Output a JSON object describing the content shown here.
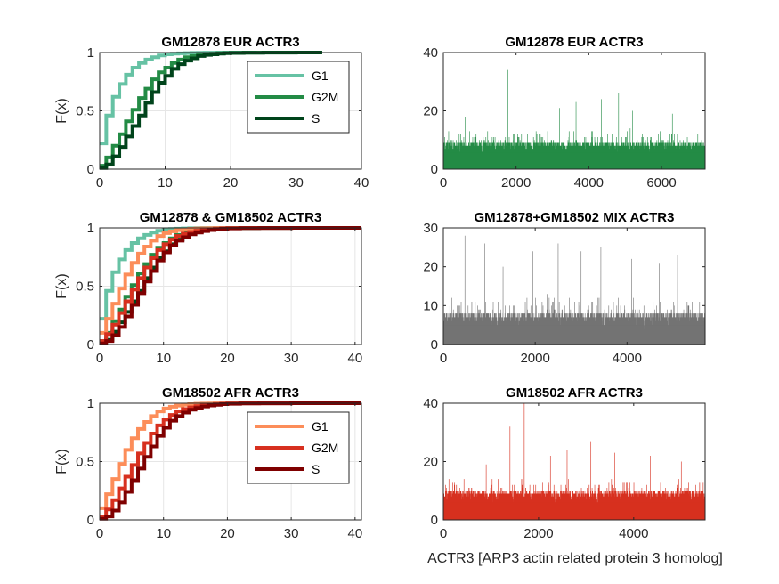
{
  "figure": {
    "xlabel": "ACTR3 [ARP3 actin related protein 3 homolog]"
  },
  "chart_data": [
    {
      "id": "cdf-eur",
      "type": "line",
      "title": "GM12878 EUR ACTR3",
      "ylabel": "F(x)",
      "xlim": [
        0,
        40
      ],
      "ylim": [
        0,
        1
      ],
      "xticks": [
        "0",
        "10",
        "20",
        "30",
        "40"
      ],
      "yticks": [
        "0",
        "0.5",
        "1"
      ],
      "grid": true,
      "legend": "top-right",
      "series": [
        {
          "name": "G1",
          "color": "#66c2a4",
          "x": [
            0,
            1,
            2,
            3,
            4,
            5,
            6,
            7,
            8,
            9,
            10,
            11,
            12,
            13,
            14,
            15,
            16,
            17,
            18,
            20,
            24
          ],
          "y": [
            0.22,
            0.46,
            0.62,
            0.73,
            0.81,
            0.87,
            0.91,
            0.94,
            0.96,
            0.975,
            0.985,
            0.99,
            0.993,
            0.995,
            0.997,
            0.998,
            0.999,
            0.9995,
            0.9998,
            1.0,
            1.0
          ]
        },
        {
          "name": "G2M",
          "color": "#238b45",
          "x": [
            0,
            1,
            2,
            3,
            4,
            5,
            6,
            7,
            8,
            9,
            10,
            11,
            12,
            13,
            14,
            15,
            16,
            17,
            18,
            19,
            20,
            22,
            25,
            34
          ],
          "y": [
            0.03,
            0.1,
            0.2,
            0.3,
            0.41,
            0.51,
            0.61,
            0.69,
            0.77,
            0.83,
            0.87,
            0.91,
            0.94,
            0.96,
            0.97,
            0.98,
            0.985,
            0.99,
            0.994,
            0.996,
            0.998,
            0.999,
            1.0,
            1.0
          ]
        },
        {
          "name": "S",
          "color": "#00441b",
          "x": [
            0,
            1,
            2,
            3,
            4,
            5,
            6,
            7,
            8,
            9,
            10,
            11,
            12,
            13,
            14,
            15,
            16,
            17,
            18,
            19,
            20,
            22,
            25,
            30,
            34
          ],
          "y": [
            0.01,
            0.04,
            0.11,
            0.19,
            0.28,
            0.37,
            0.46,
            0.57,
            0.66,
            0.74,
            0.8,
            0.86,
            0.9,
            0.93,
            0.95,
            0.97,
            0.98,
            0.985,
            0.99,
            0.994,
            0.996,
            0.998,
            0.999,
            1.0,
            1.0
          ]
        }
      ]
    },
    {
      "id": "hist-eur",
      "type": "bar",
      "title": "GM12878 EUR ACTR3",
      "xlim": [
        0,
        7200
      ],
      "ylim": [
        0,
        40
      ],
      "xticks": [
        "0",
        "2000",
        "4000",
        "6000"
      ],
      "yticks": [
        "0",
        "20",
        "40"
      ],
      "grid": false,
      "color": "#238b45",
      "n": 7200,
      "typical_max": 10,
      "peaks": [
        [
          1780,
          34
        ],
        [
          3650,
          23
        ],
        [
          4350,
          24
        ],
        [
          4820,
          26
        ],
        [
          3200,
          21
        ],
        [
          5200,
          20
        ],
        [
          600,
          18
        ],
        [
          6300,
          19
        ]
      ]
    },
    {
      "id": "cdf-mix",
      "type": "line",
      "title": "GM12878 & GM18502 ACTR3",
      "ylabel": "F(x)",
      "xlim": [
        0,
        41
      ],
      "ylim": [
        0,
        1
      ],
      "xticks": [
        "0",
        "10",
        "20",
        "30",
        "40"
      ],
      "yticks": [
        "0",
        "0.5",
        "1"
      ],
      "grid": true,
      "legend": "",
      "series": [
        {
          "name": "",
          "color": "#66c2a4",
          "x": [
            0,
            1,
            2,
            3,
            4,
            5,
            6,
            7,
            8,
            9,
            10,
            11,
            12,
            13,
            14,
            15,
            16,
            17,
            18,
            20,
            24
          ],
          "y": [
            0.22,
            0.46,
            0.62,
            0.73,
            0.81,
            0.87,
            0.91,
            0.94,
            0.96,
            0.975,
            0.985,
            0.99,
            0.993,
            0.995,
            0.997,
            0.998,
            0.999,
            0.9995,
            0.9998,
            1.0,
            1.0
          ]
        },
        {
          "name": "",
          "color": "#238b45",
          "x": [
            0,
            1,
            2,
            3,
            4,
            5,
            6,
            7,
            8,
            9,
            10,
            11,
            12,
            13,
            14,
            15,
            16,
            17,
            18,
            19,
            20,
            22,
            25,
            34
          ],
          "y": [
            0.03,
            0.1,
            0.2,
            0.3,
            0.41,
            0.51,
            0.61,
            0.69,
            0.77,
            0.83,
            0.87,
            0.91,
            0.94,
            0.96,
            0.97,
            0.98,
            0.985,
            0.99,
            0.994,
            0.996,
            0.998,
            0.999,
            1.0,
            1.0
          ]
        },
        {
          "name": "",
          "color": "#00441b",
          "x": [
            0,
            1,
            2,
            3,
            4,
            5,
            6,
            7,
            8,
            9,
            10,
            11,
            12,
            13,
            14,
            15,
            16,
            17,
            18,
            19,
            20,
            22,
            25,
            30,
            34
          ],
          "y": [
            0.01,
            0.04,
            0.11,
            0.19,
            0.28,
            0.37,
            0.46,
            0.57,
            0.66,
            0.74,
            0.8,
            0.86,
            0.9,
            0.93,
            0.95,
            0.97,
            0.98,
            0.985,
            0.99,
            0.994,
            0.996,
            0.998,
            0.999,
            1.0,
            1.0
          ]
        },
        {
          "name": "",
          "color": "#fc8d59",
          "x": [
            0,
            1,
            2,
            3,
            4,
            5,
            6,
            7,
            8,
            9,
            10,
            11,
            12,
            13,
            14,
            15,
            16,
            17,
            18,
            20,
            22,
            25
          ],
          "y": [
            0.1,
            0.22,
            0.35,
            0.48,
            0.6,
            0.7,
            0.78,
            0.84,
            0.89,
            0.93,
            0.955,
            0.97,
            0.98,
            0.987,
            0.992,
            0.995,
            0.997,
            0.998,
            0.999,
            0.9995,
            1.0,
            1.0
          ]
        },
        {
          "name": "",
          "color": "#d7301f",
          "x": [
            0,
            1,
            2,
            3,
            4,
            5,
            6,
            7,
            8,
            9,
            10,
            11,
            12,
            13,
            14,
            15,
            16,
            17,
            18,
            19,
            20,
            22,
            25,
            30,
            41
          ],
          "y": [
            0.03,
            0.09,
            0.17,
            0.27,
            0.37,
            0.47,
            0.57,
            0.66,
            0.74,
            0.81,
            0.86,
            0.9,
            0.93,
            0.95,
            0.965,
            0.975,
            0.983,
            0.989,
            0.993,
            0.996,
            0.998,
            0.999,
            0.9995,
            1.0,
            1.0
          ]
        },
        {
          "name": "",
          "color": "#7f0000",
          "x": [
            0,
            1,
            2,
            3,
            4,
            5,
            6,
            7,
            8,
            9,
            10,
            11,
            12,
            13,
            14,
            15,
            16,
            17,
            18,
            19,
            20,
            22,
            25,
            30,
            41
          ],
          "y": [
            0.01,
            0.03,
            0.08,
            0.15,
            0.24,
            0.34,
            0.44,
            0.54,
            0.63,
            0.72,
            0.79,
            0.85,
            0.89,
            0.92,
            0.945,
            0.96,
            0.972,
            0.981,
            0.987,
            0.992,
            0.995,
            0.998,
            0.999,
            1.0,
            1.0
          ]
        }
      ]
    },
    {
      "id": "hist-mix",
      "type": "bar",
      "title": "GM12878+GM18502 MIX ACTR3",
      "xlim": [
        0,
        5700
      ],
      "ylim": [
        0,
        30
      ],
      "xticks": [
        "0",
        "2000",
        "4000"
      ],
      "yticks": [
        "0",
        "10",
        "20",
        "30"
      ],
      "grid": false,
      "color": "#737373",
      "n": 5700,
      "typical_max": 9,
      "peaks": [
        [
          470,
          28
        ],
        [
          900,
          26
        ],
        [
          1950,
          24
        ],
        [
          2500,
          26
        ],
        [
          3000,
          24
        ],
        [
          3430,
          25
        ],
        [
          4100,
          22
        ],
        [
          5100,
          23
        ],
        [
          1300,
          20
        ],
        [
          4700,
          21
        ]
      ]
    },
    {
      "id": "cdf-afr",
      "type": "line",
      "title": "GM18502 AFR ACTR3",
      "ylabel": "F(x)",
      "xlim": [
        0,
        41
      ],
      "ylim": [
        0,
        1
      ],
      "xticks": [
        "0",
        "10",
        "20",
        "30",
        "40"
      ],
      "yticks": [
        "0",
        "0.5",
        "1"
      ],
      "grid": true,
      "legend": "top-right",
      "series": [
        {
          "name": "G1",
          "color": "#fc8d59",
          "x": [
            0,
            1,
            2,
            3,
            4,
            5,
            6,
            7,
            8,
            9,
            10,
            11,
            12,
            13,
            14,
            15,
            16,
            17,
            18,
            20,
            22,
            25
          ],
          "y": [
            0.1,
            0.22,
            0.35,
            0.48,
            0.6,
            0.7,
            0.78,
            0.84,
            0.89,
            0.93,
            0.955,
            0.97,
            0.98,
            0.987,
            0.992,
            0.995,
            0.997,
            0.998,
            0.999,
            0.9995,
            1.0,
            1.0
          ]
        },
        {
          "name": "G2M",
          "color": "#d7301f",
          "x": [
            0,
            1,
            2,
            3,
            4,
            5,
            6,
            7,
            8,
            9,
            10,
            11,
            12,
            13,
            14,
            15,
            16,
            17,
            18,
            19,
            20,
            22,
            25,
            30,
            41
          ],
          "y": [
            0.03,
            0.09,
            0.17,
            0.27,
            0.37,
            0.47,
            0.57,
            0.66,
            0.74,
            0.81,
            0.86,
            0.9,
            0.93,
            0.95,
            0.965,
            0.975,
            0.983,
            0.989,
            0.993,
            0.996,
            0.998,
            0.999,
            0.9995,
            1.0,
            1.0
          ]
        },
        {
          "name": "S",
          "color": "#7f0000",
          "x": [
            0,
            1,
            2,
            3,
            4,
            5,
            6,
            7,
            8,
            9,
            10,
            11,
            12,
            13,
            14,
            15,
            16,
            17,
            18,
            19,
            20,
            22,
            25,
            30,
            41
          ],
          "y": [
            0.01,
            0.03,
            0.08,
            0.15,
            0.24,
            0.34,
            0.44,
            0.54,
            0.63,
            0.72,
            0.79,
            0.85,
            0.89,
            0.92,
            0.945,
            0.96,
            0.972,
            0.981,
            0.987,
            0.992,
            0.995,
            0.998,
            0.999,
            1.0,
            1.0
          ]
        }
      ]
    },
    {
      "id": "hist-afr",
      "type": "bar",
      "title": "GM18502 AFR ACTR3",
      "xlim": [
        0,
        5500
      ],
      "ylim": [
        0,
        40
      ],
      "xticks": [
        "0",
        "2000",
        "4000"
      ],
      "yticks": [
        "0",
        "20",
        "40"
      ],
      "grid": false,
      "color": "#d7301f",
      "n": 5500,
      "typical_max": 11,
      "peaks": [
        [
          1700,
          40
        ],
        [
          1400,
          32
        ],
        [
          3100,
          27
        ],
        [
          2600,
          24
        ],
        [
          3600,
          23
        ],
        [
          4350,
          22
        ],
        [
          2250,
          22
        ],
        [
          3900,
          21
        ],
        [
          5000,
          20
        ],
        [
          900,
          19
        ]
      ]
    }
  ]
}
